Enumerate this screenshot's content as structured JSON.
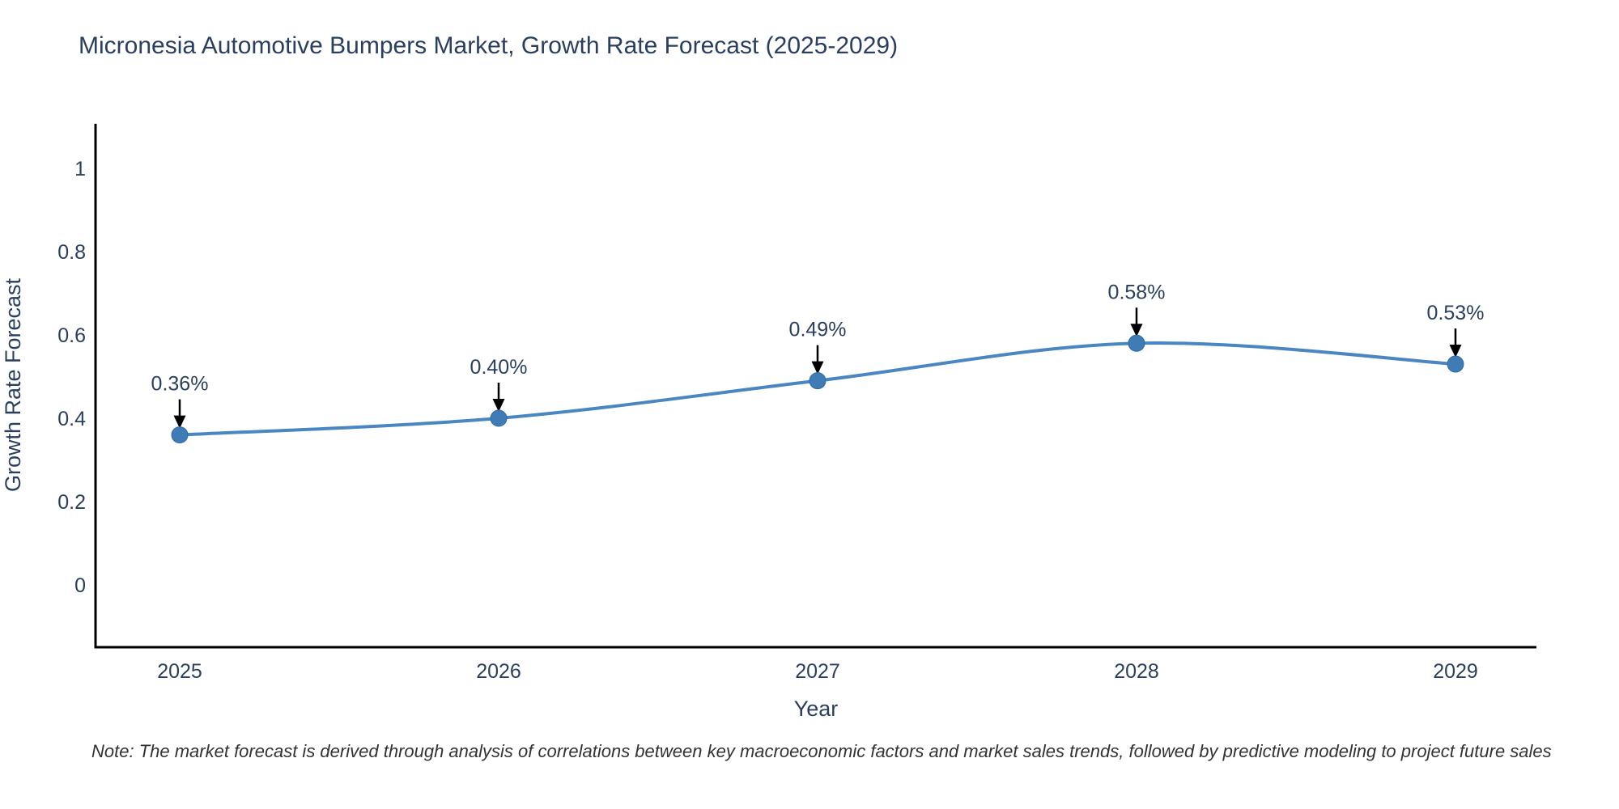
{
  "chart_data": {
    "type": "line",
    "title": "Micronesia Automotive Bumpers Market, Growth Rate Forecast (2025-2029)",
    "xlabel": "Year",
    "ylabel": "Growth Rate Forecast",
    "x": [
      "2025",
      "2026",
      "2027",
      "2028",
      "2029"
    ],
    "series": [
      {
        "name": "Growth Rate Forecast",
        "values": [
          0.36,
          0.4,
          0.49,
          0.58,
          0.53
        ]
      }
    ],
    "point_labels": [
      "0.36%",
      "0.40%",
      "0.49%",
      "0.58%",
      "0.53%"
    ],
    "y_ticks": [
      1,
      0.8,
      0.6,
      0.4,
      0.2,
      0
    ],
    "y_tick_labels": [
      "1",
      "0.8",
      "0.6",
      "0.4",
      "0.2",
      "0"
    ],
    "ylim": [
      -0.15,
      1.11
    ],
    "grid": false,
    "legend_position": "none",
    "line_shape": "spline",
    "marker": "circle",
    "colors": {
      "line": "#4a87c2",
      "marker_fill": "#3f7cb6",
      "marker_edge": "#2f6ba8",
      "axis": "#000000",
      "text": "#2a3f5f",
      "arrow": "#000000"
    }
  },
  "note": "Note: The market forecast is derived through analysis of correlations between key macroeconomic factors and market sales trends, followed by predictive modeling to project future sales"
}
